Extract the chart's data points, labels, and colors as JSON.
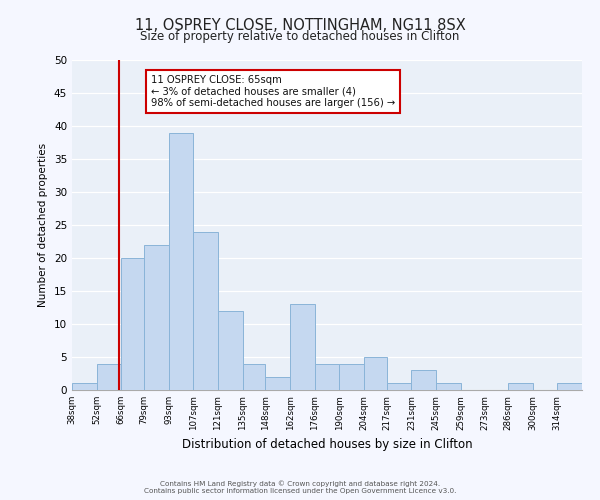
{
  "title": "11, OSPREY CLOSE, NOTTINGHAM, NG11 8SX",
  "subtitle": "Size of property relative to detached houses in Clifton",
  "xlabel": "Distribution of detached houses by size in Clifton",
  "ylabel": "Number of detached properties",
  "bin_labels": [
    "38sqm",
    "52sqm",
    "66sqm",
    "79sqm",
    "93sqm",
    "107sqm",
    "121sqm",
    "135sqm",
    "148sqm",
    "162sqm",
    "176sqm",
    "190sqm",
    "204sqm",
    "217sqm",
    "231sqm",
    "245sqm",
    "259sqm",
    "273sqm",
    "286sqm",
    "300sqm",
    "314sqm"
  ],
  "bin_edges": [
    38,
    52,
    66,
    79,
    93,
    107,
    121,
    135,
    148,
    162,
    176,
    190,
    204,
    217,
    231,
    245,
    259,
    273,
    286,
    300,
    314,
    328
  ],
  "bar_heights": [
    1,
    4,
    20,
    22,
    39,
    24,
    12,
    4,
    2,
    13,
    4,
    4,
    5,
    1,
    3,
    1,
    0,
    0,
    1,
    0,
    1
  ],
  "bar_color": "#c5d8f0",
  "bar_edge_color": "#8ab4d8",
  "ylim": [
    0,
    50
  ],
  "yticks": [
    0,
    5,
    10,
    15,
    20,
    25,
    30,
    35,
    40,
    45,
    50
  ],
  "vline_x": 65,
  "vline_color": "#cc0000",
  "annotation_title": "11 OSPREY CLOSE: 65sqm",
  "annotation_line1": "← 3% of detached houses are smaller (4)",
  "annotation_line2": "98% of semi-detached houses are larger (156) →",
  "annotation_box_color": "#cc0000",
  "bg_color": "#eaf0f8",
  "grid_color": "#ffffff",
  "fig_bg_color": "#f5f7ff",
  "footer_line1": "Contains HM Land Registry data © Crown copyright and database right 2024.",
  "footer_line2": "Contains public sector information licensed under the Open Government Licence v3.0."
}
